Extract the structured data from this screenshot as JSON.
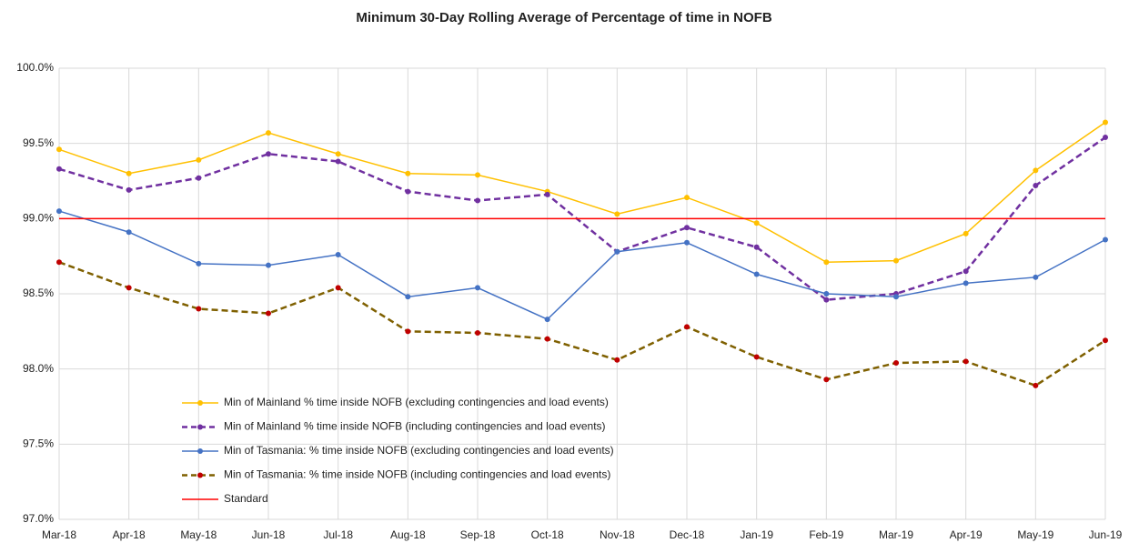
{
  "chart_data": {
    "type": "line",
    "title": "Minimum 30-Day Rolling Average of Percentage of time in NOFB",
    "categories": [
      "Mar-18",
      "Apr-18",
      "May-18",
      "Jun-18",
      "Jul-18",
      "Aug-18",
      "Sep-18",
      "Oct-18",
      "Nov-18",
      "Dec-18",
      "Jan-19",
      "Feb-19",
      "Mar-19",
      "Apr-19",
      "May-19",
      "Jun-19"
    ],
    "ylim": [
      97.0,
      100.0
    ],
    "yticks": [
      {
        "value": 97.0,
        "label": "97.0%"
      },
      {
        "value": 97.5,
        "label": "97.5%"
      },
      {
        "value": 98.0,
        "label": "98.0%"
      },
      {
        "value": 98.5,
        "label": "98.5%"
      },
      {
        "value": 99.0,
        "label": "99.0%"
      },
      {
        "value": 99.5,
        "label": "99.5%"
      },
      {
        "value": 100.0,
        "label": "100.0%"
      }
    ],
    "grid": true,
    "legend": "lower-left",
    "series": [
      {
        "name": "Min of Mainland % time inside NOFB (excluding contingencies and load events)",
        "color": "#ffc000",
        "dashed": false,
        "markers": true,
        "values": [
          99.46,
          99.3,
          99.39,
          99.57,
          99.43,
          99.3,
          99.29,
          99.18,
          99.03,
          99.14,
          98.97,
          98.71,
          98.72,
          98.9,
          99.32,
          99.64
        ]
      },
      {
        "name": "Min of Mainland % time inside NOFB (including contingencies and load events)",
        "color": "#7030a0",
        "dashed": true,
        "markers": true,
        "values": [
          99.33,
          99.19,
          99.27,
          99.43,
          99.38,
          99.18,
          99.12,
          99.16,
          98.78,
          98.94,
          98.81,
          98.46,
          98.5,
          98.65,
          99.22,
          99.54
        ]
      },
      {
        "name": "Min of Tasmania: % time inside NOFB  (excluding contingencies and load events)",
        "color": "#4472c4",
        "dashed": false,
        "markers": true,
        "values": [
          99.05,
          98.91,
          98.7,
          98.69,
          98.76,
          98.48,
          98.54,
          98.33,
          98.78,
          98.84,
          98.63,
          98.5,
          98.48,
          98.57,
          98.61,
          98.86
        ]
      },
      {
        "name": "Min of Tasmania: % time inside NOFB  (including contingencies and load events)",
        "color": "#7f6000",
        "marker_color": "#c00000",
        "dashed": true,
        "markers": true,
        "values": [
          98.71,
          98.54,
          98.4,
          98.37,
          98.54,
          98.25,
          98.24,
          98.2,
          98.06,
          98.28,
          98.08,
          97.93,
          98.04,
          98.05,
          97.89,
          98.19
        ]
      },
      {
        "name": "Standard",
        "color": "#ff0000",
        "dashed": false,
        "markers": false,
        "values": [
          99,
          99,
          99,
          99,
          99,
          99,
          99,
          99,
          99,
          99,
          99,
          99,
          99,
          99,
          99,
          99
        ]
      }
    ]
  }
}
